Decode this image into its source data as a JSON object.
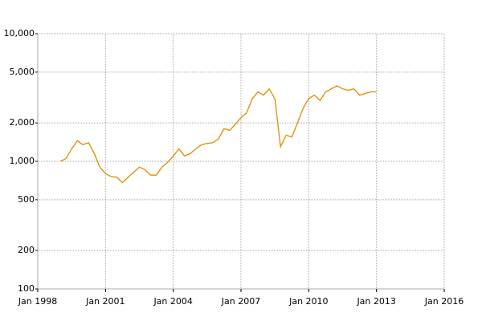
{
  "chart_data": {
    "type": "line",
    "log_y": true,
    "grid": true,
    "x": [
      "1999-01",
      "1999-04",
      "1999-07",
      "1999-10",
      "2000-01",
      "2000-04",
      "2000-07",
      "2000-10",
      "2001-01",
      "2001-04",
      "2001-07",
      "2001-10",
      "2002-01",
      "2002-04",
      "2002-07",
      "2002-10",
      "2003-01",
      "2003-04",
      "2003-07",
      "2003-10",
      "2004-01",
      "2004-04",
      "2004-07",
      "2004-10",
      "2005-01",
      "2005-04",
      "2005-07",
      "2005-10",
      "2006-01",
      "2006-04",
      "2006-07",
      "2006-10",
      "2007-01",
      "2007-04",
      "2007-07",
      "2007-10",
      "2008-01",
      "2008-04",
      "2008-07",
      "2008-10",
      "2009-01",
      "2009-04",
      "2009-07",
      "2009-10",
      "2010-01",
      "2010-04",
      "2010-07",
      "2010-10",
      "2011-01",
      "2011-04",
      "2011-07",
      "2011-10",
      "2012-01",
      "2012-04",
      "2012-07",
      "2012-10",
      "2013-01"
    ],
    "series": [
      {
        "color": "#e08a00",
        "values": [
          1000,
          1050,
          1250,
          1450,
          1350,
          1400,
          1150,
          900,
          800,
          760,
          750,
          680,
          750,
          820,
          900,
          860,
          780,
          780,
          900,
          980,
          1100,
          1250,
          1100,
          1150,
          1250,
          1350,
          1380,
          1400,
          1500,
          1800,
          1750,
          1950,
          2200,
          2400,
          3100,
          3500,
          3300,
          3700,
          3100,
          1300,
          1600,
          1550,
          2000,
          2600,
          3100,
          3300,
          3000,
          3500,
          3700,
          3900,
          3700,
          3600,
          3700,
          3300,
          3400,
          3500,
          3500
        ]
      }
    ],
    "xlim": [
      "1998-01",
      "2016-01"
    ],
    "xticks": [
      {
        "value": "1998-01",
        "label": "Jan 1998"
      },
      {
        "value": "2001-01",
        "label": "Jan 2001"
      },
      {
        "value": "2004-01",
        "label": "Jan 2004"
      },
      {
        "value": "2007-01",
        "label": "Jan 2007"
      },
      {
        "value": "2010-01",
        "label": "Jan 2010"
      },
      {
        "value": "2013-01",
        "label": "Jan 2013"
      },
      {
        "value": "2016-01",
        "label": "Jan 2016"
      }
    ],
    "ylim": [
      100,
      10000
    ],
    "yticks": [
      100,
      200,
      500,
      {
        "value": 1000,
        "label": "1,000"
      },
      {
        "value": 2000,
        "label": "2,000"
      },
      {
        "value": 5000,
        "label": "5,000"
      },
      {
        "value": 10000,
        "label": "10,000"
      }
    ]
  }
}
